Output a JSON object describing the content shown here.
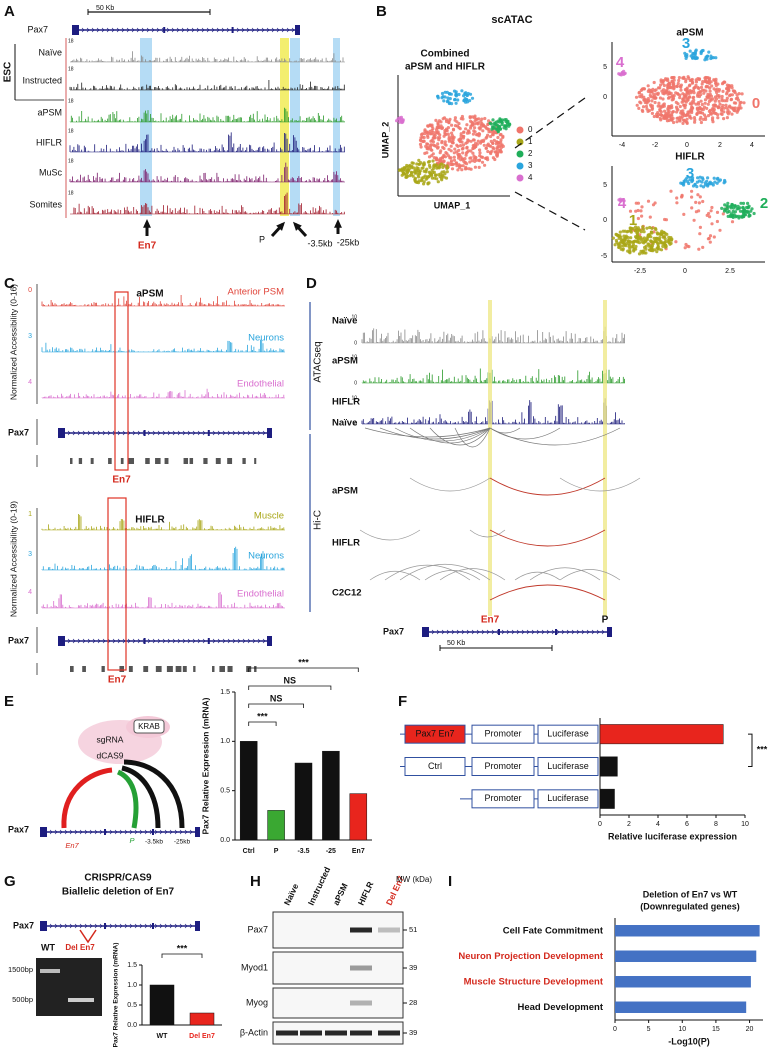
{
  "figure": {
    "panel_labels": [
      "A",
      "B",
      "C",
      "D",
      "E",
      "F",
      "G",
      "H",
      "I"
    ],
    "A": {
      "scale": "50 Kb",
      "gene": "Pax7",
      "group": "ESC",
      "tracks": [
        "Naïve",
        "Instructed",
        "aPSM",
        "HIFLR",
        "MuSc",
        "Somites"
      ],
      "track_max": 18,
      "markers": [
        "En7",
        "P",
        "-3.5kb",
        "-25kb"
      ]
    },
    "B": {
      "title": "scATAC",
      "combined_title": [
        "Combined",
        "aPSM and HIFLR"
      ],
      "ylabel": "UMAP_2",
      "xlabel": "UMAP_1",
      "clusters": [
        "0",
        "1",
        "2",
        "3",
        "4"
      ],
      "cluster_colors": [
        "#f0756b",
        "#a9a718",
        "#1fae5a",
        "#2aa5dd",
        "#d96fcf"
      ],
      "apsm": {
        "title": "aPSM",
        "yticks": [
          5,
          0
        ],
        "xticks": [
          -4,
          -2,
          0,
          2,
          4
        ]
      },
      "hiflr": {
        "title": "HIFLR",
        "yticks": [
          5,
          0,
          -5
        ],
        "xticks": [
          -2.5,
          0,
          2.5
        ]
      }
    },
    "C": {
      "apsm": {
        "title": "aPSM",
        "ylabel": "Normalized Accessibility (0-16)",
        "tracks": [
          {
            "id": "0",
            "name": "Anterior PSM"
          },
          {
            "id": "3",
            "name": "Neurons"
          },
          {
            "id": "4",
            "name": "Endothelial"
          }
        ]
      },
      "hiflr": {
        "title": "HIFLR",
        "ylabel": "Normalized Accessibility (0-19)",
        "tracks": [
          {
            "id": "1",
            "name": "Muscle"
          },
          {
            "id": "3",
            "name": "Neurons"
          },
          {
            "id": "4",
            "name": "Endothelial"
          }
        ]
      },
      "gene": "Pax7",
      "element": "En7"
    },
    "D": {
      "atac_label": "ATACseq",
      "atac_tracks": [
        "Naïve",
        "aPSM",
        "HIFLR"
      ],
      "atac_scale": [
        10,
        0
      ],
      "hic_label": "Hi-C",
      "hic_tracks": [
        "Naïve",
        "aPSM",
        "HIFLR",
        "C2C12"
      ],
      "markers": [
        "En7",
        "P"
      ],
      "gene": "Pax7",
      "scale": "50 Kb"
    },
    "E": {
      "gene": "Pax7",
      "labels": [
        "KRAB",
        "sgRNA",
        "dCAS9"
      ],
      "sites": [
        "En7",
        "P",
        "-3.5kb",
        "-25kb"
      ]
    },
    "G": {
      "title": [
        "CRISPR/CAS9",
        "Biallelic deletion of En7"
      ],
      "gene": "Pax7",
      "gel_sizes": [
        "1500bp",
        "500bp"
      ],
      "gel_lanes": [
        "WT",
        "Del En7"
      ]
    },
    "H": {
      "lanes": [
        "Naïve",
        "Instructed",
        "aPSM",
        "HIFLR",
        "Del En7"
      ],
      "mw_label": "MW (kDa)",
      "blots": [
        {
          "name": "Pax7",
          "mw": 51
        },
        {
          "name": "Myod1",
          "mw": 39
        },
        {
          "name": "Myog",
          "mw": 28
        },
        {
          "name": "β-Actin",
          "mw": 39
        }
      ]
    }
  },
  "chart_data": [
    {
      "type": "bar",
      "ylabel": "Pax7 Relative Expression (mRNA)",
      "categories": [
        "Ctrl",
        "P",
        "-3.5",
        "-25",
        "En7"
      ],
      "values": [
        1.0,
        0.3,
        0.78,
        0.9,
        0.47
      ],
      "colors": [
        "#111111",
        "#3aa832",
        "#111111",
        "#111111",
        "#e8251d"
      ],
      "ylim": [
        0,
        1.5
      ],
      "yticks": [
        {
          "value": 0,
          "label": "0.0"
        },
        {
          "value": 0.5,
          "label": "0.5"
        },
        {
          "value": 1,
          "label": "1.0"
        },
        {
          "value": 1.5,
          "label": "1.5"
        }
      ],
      "annotations": [
        "***",
        "NS",
        "NS",
        "***"
      ]
    },
    {
      "type": "hbar",
      "xlabel": "Relative luciferase expression",
      "categories": [
        "Pax7 En7",
        "Ctrl",
        null
      ],
      "construct_parts": [
        "Promoter",
        "Luciferase"
      ],
      "values": [
        8.5,
        1.2,
        1.0
      ],
      "colors": [
        "#e8251d",
        "#111111",
        "#111111"
      ],
      "xlim": [
        0,
        10
      ],
      "xticks": [
        0,
        2,
        4,
        6,
        8,
        10
      ],
      "annotations": [
        "***"
      ]
    },
    {
      "type": "bar",
      "ylabel": "Pax7 Relative Expression (mRNA)",
      "categories": [
        "WT",
        "Del En7"
      ],
      "values": [
        1.0,
        0.3
      ],
      "colors": [
        "#111111",
        "#e8251d"
      ],
      "label_colors": [
        "#111111",
        "#e8251d"
      ],
      "ylim": [
        0,
        1.5
      ],
      "yticks": [
        {
          "value": 0,
          "label": "0.0"
        },
        {
          "value": 0.5,
          "label": "0.5"
        },
        {
          "value": 1,
          "label": "1.0"
        },
        {
          "value": 1.5,
          "label": "1.5"
        }
      ],
      "annotations": [
        "***"
      ]
    },
    {
      "type": "hbar",
      "title": [
        "Deletion of En7 vs WT",
        "(Downregulated genes)"
      ],
      "xlabel": "-Log10(P)",
      "categories": [
        "Cell Fate Commitment",
        "Neuron Projection Development",
        "Muscle Structure Development",
        "Head Development"
      ],
      "values": [
        21.5,
        21,
        20.2,
        19.5
      ],
      "color": "#4472c4",
      "label_colors": [
        "#111111",
        "#d42a1e",
        "#d42a1e",
        "#111111"
      ],
      "xlim": [
        0,
        22
      ],
      "xticks": [
        0,
        5,
        10,
        15,
        20
      ]
    }
  ]
}
